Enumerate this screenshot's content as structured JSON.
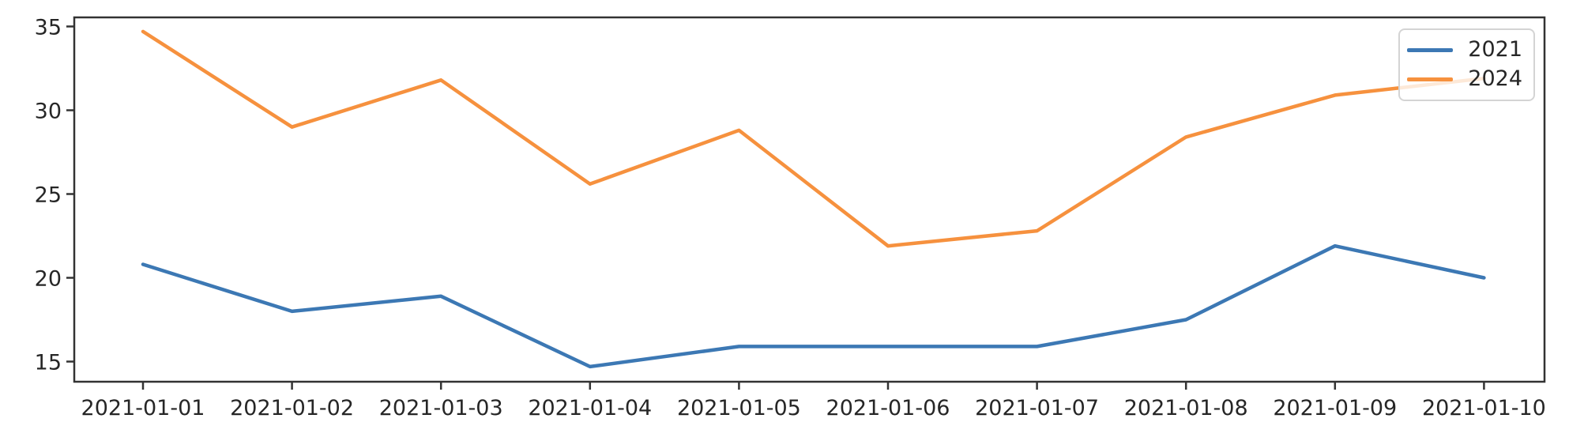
{
  "chart_data": {
    "type": "line",
    "title": "",
    "xlabel": "",
    "ylabel": "",
    "grid": false,
    "legend_position": "upper right",
    "x_ticklabels": [
      "2021-01-01",
      "2021-01-02",
      "2021-01-03",
      "2021-01-04",
      "2021-01-05",
      "2021-01-06",
      "2021-01-07",
      "2021-01-08",
      "2021-01-09",
      "2021-01-10"
    ],
    "y_ticks": [
      15,
      20,
      25,
      30,
      35
    ],
    "ylim": [
      13.8,
      35.6
    ],
    "series": [
      {
        "name": "2021",
        "color": "#3c78b4",
        "values": [
          20.8,
          18.0,
          18.9,
          14.7,
          15.9,
          15.9,
          15.9,
          17.5,
          21.9,
          20.0
        ]
      },
      {
        "name": "2024",
        "color": "#f6913e",
        "values": [
          34.7,
          29.0,
          31.8,
          25.6,
          28.8,
          21.9,
          22.8,
          28.4,
          30.9,
          31.9
        ]
      }
    ],
    "colors": {
      "spine": "#333333",
      "tick_text": "#262626",
      "background": "#ffffff"
    }
  }
}
